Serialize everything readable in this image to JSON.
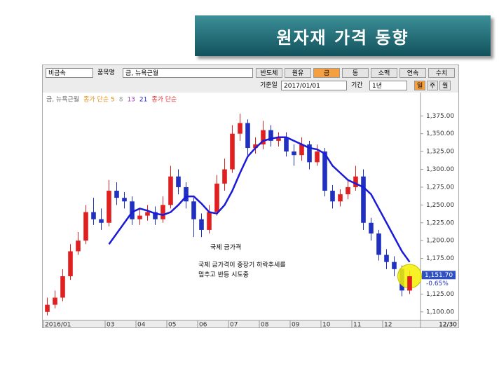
{
  "slide_title": "원자재 가격 동향",
  "toolbar": {
    "group": "비금속",
    "item_label": "품목명",
    "item": "금, 뉴욕근월",
    "buttons": [
      "반도체",
      "원유",
      "금",
      "동",
      "소맥",
      "연속",
      "수치"
    ],
    "date_label": "기준일",
    "date": "2017/01/01",
    "period_label": "기간",
    "period": "1년",
    "units": [
      "일",
      "주",
      "월"
    ]
  },
  "chart_data": {
    "type": "candlestick",
    "legend": [
      {
        "label": "금, 뉴욕근월",
        "color": "#666666"
      },
      {
        "label": "종가 단순 5",
        "color": "#e8901a"
      },
      {
        "label": "8",
        "color": "#999999"
      },
      {
        "label": "13",
        "color": "#9b3fb5"
      },
      {
        "label": "21",
        "color": "#2a2ad0"
      },
      {
        "label": "종가 단순",
        "color": "#e03030"
      }
    ],
    "up_color": "#e02020",
    "down_color": "#2030c0",
    "categories": [
      "2016/01",
      null,
      null,
      null,
      null,
      null,
      null,
      null,
      "03",
      null,
      null,
      null,
      "04",
      null,
      null,
      null,
      "05",
      null,
      null,
      null,
      "06",
      null,
      null,
      null,
      "07",
      null,
      null,
      null,
      "08",
      null,
      null,
      null,
      "09",
      null,
      null,
      null,
      "10",
      null,
      null,
      null,
      "11",
      null,
      null,
      null,
      "12",
      null,
      null,
      null
    ],
    "x_end_label": "12/30",
    "open": [
      1100,
      1110,
      1120,
      1150,
      1185,
      1200,
      1240,
      1230,
      1225,
      1270,
      1260,
      1255,
      1230,
      1235,
      1240,
      1230,
      1250,
      1290,
      1275,
      1255,
      1230,
      1215,
      1240,
      1280,
      1300,
      1350,
      1365,
      1330,
      1335,
      1355,
      1340,
      1345,
      1325,
      1320,
      1335,
      1310,
      1325,
      1270,
      1255,
      1265,
      1275,
      1290,
      1225,
      1210,
      1180,
      1170,
      1160,
      1130
    ],
    "high": [
      1120,
      1130,
      1160,
      1195,
      1212,
      1250,
      1260,
      1245,
      1285,
      1282,
      1268,
      1262,
      1245,
      1250,
      1248,
      1262,
      1305,
      1300,
      1282,
      1260,
      1238,
      1250,
      1292,
      1315,
      1362,
      1378,
      1370,
      1345,
      1368,
      1362,
      1352,
      1352,
      1335,
      1345,
      1340,
      1335,
      1330,
      1278,
      1272,
      1285,
      1305,
      1300,
      1232,
      1215,
      1188,
      1178,
      1165,
      1158
    ],
    "low": [
      1095,
      1105,
      1115,
      1145,
      1180,
      1195,
      1222,
      1215,
      1220,
      1250,
      1245,
      1222,
      1222,
      1228,
      1222,
      1225,
      1245,
      1265,
      1245,
      1205,
      1205,
      1210,
      1235,
      1270,
      1295,
      1340,
      1320,
      1322,
      1328,
      1332,
      1332,
      1318,
      1305,
      1312,
      1300,
      1305,
      1262,
      1245,
      1248,
      1258,
      1270,
      1215,
      1200,
      1172,
      1160,
      1150,
      1122,
      1125
    ],
    "close": [
      1110,
      1120,
      1150,
      1185,
      1200,
      1240,
      1230,
      1225,
      1270,
      1260,
      1255,
      1230,
      1235,
      1240,
      1230,
      1250,
      1290,
      1275,
      1255,
      1230,
      1215,
      1240,
      1280,
      1300,
      1350,
      1365,
      1330,
      1335,
      1355,
      1340,
      1345,
      1325,
      1320,
      1335,
      1310,
      1325,
      1270,
      1255,
      1265,
      1275,
      1290,
      1225,
      1210,
      1180,
      1170,
      1160,
      1130,
      1150
    ],
    "ma": {
      "color": "#1a1ad8",
      "values": [
        null,
        null,
        null,
        null,
        null,
        null,
        null,
        null,
        1195,
        1210,
        1225,
        1240,
        1245,
        1242,
        1238,
        1236,
        1240,
        1250,
        1262,
        1262,
        1252,
        1240,
        1238,
        1250,
        1270,
        1295,
        1318,
        1330,
        1340,
        1343,
        1345,
        1345,
        1340,
        1335,
        1330,
        1328,
        1322,
        1305,
        1295,
        1285,
        1280,
        1275,
        1265,
        1245,
        1225,
        1205,
        1185,
        1170
      ]
    },
    "current_price": {
      "value": 1151.7,
      "label": "1,151.70"
    },
    "change": {
      "value": -0.65,
      "label": "-0.65%"
    },
    "ylim": [
      1090,
      1392
    ],
    "yticks": [
      {
        "value": 1100,
        "label": "1,100.00"
      },
      {
        "value": 1125,
        "label": "1,125.00"
      },
      {
        "value": 1150,
        "label": "1,150.00"
      },
      {
        "value": 1175,
        "label": "1,175.00"
      },
      {
        "value": 1200,
        "label": "1,200.00"
      },
      {
        "value": 1225,
        "label": "1,225.00"
      },
      {
        "value": 1250,
        "label": "1,250.00"
      },
      {
        "value": 1275,
        "label": "1,275.00"
      },
      {
        "value": 1300,
        "label": "1,300.00"
      },
      {
        "value": 1325,
        "label": "1,325.00"
      },
      {
        "value": 1350,
        "label": "1,350.00"
      },
      {
        "value": 1375,
        "label": "1,375.00"
      }
    ],
    "annotations": [
      "국제 금가격",
      "국제 금가격이 중장기 하락추세를",
      "멈추고 반등 시도중"
    ]
  }
}
